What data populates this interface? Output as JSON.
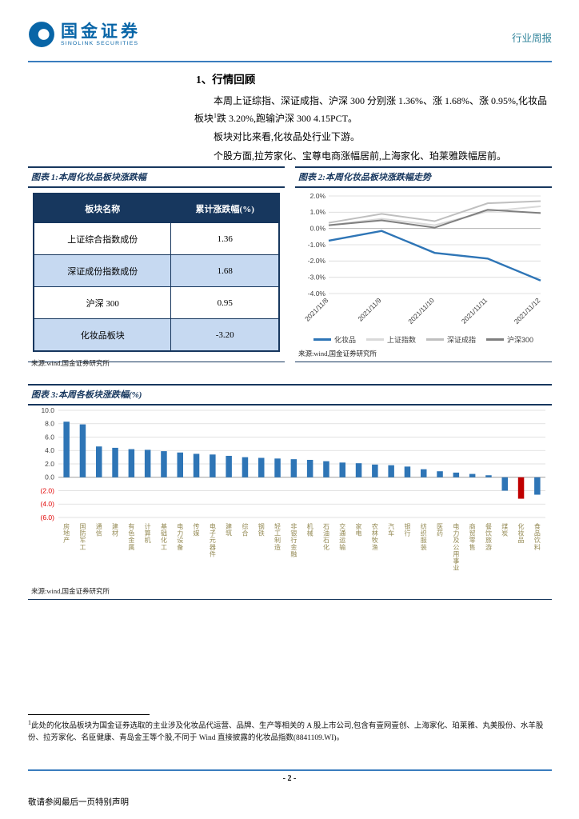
{
  "header": {
    "brand_cn": "国金证券",
    "brand_en": "SINOLINK SECURITIES",
    "report_type": "行业周报"
  },
  "content": {
    "section_title": "1、行情回顾",
    "p1_a": "本周上证综指、深证成指、沪深 300 分别涨 1.36%、涨 1.68%、涨 0.95%,化妆品板块",
    "p1_sup": "1",
    "p1_b": "跌 3.20%,跑输沪深 300 4.15PCT。",
    "p2": "板块对比来看,化妆品处行业下游。",
    "p3": "个股方面,拉芳家化、宝尊电商涨幅居前,上海家化、珀莱雅跌幅居前。"
  },
  "figure1": {
    "caption": "图表 1:本周化妆品板块涨跌幅",
    "table": {
      "headers": [
        "板块名称",
        "累计涨跌幅(%)"
      ],
      "rows": [
        [
          "上证综合指数成份",
          "1.36"
        ],
        [
          "深证成份指数成份",
          "1.68"
        ],
        [
          "沪深 300",
          "0.95"
        ],
        [
          "化妆品板块",
          "-3.20"
        ]
      ]
    },
    "source": "来源:wind,国金证券研究所"
  },
  "figure2": {
    "caption": "图表 2:本周化妆品板块涨跌幅走势",
    "source": "来源:wind,国金证券研究所"
  },
  "figure3": {
    "caption": "图表 3:本周各板块涨跌幅(%)",
    "source": "来源:wind,国金证券研究所"
  },
  "chart_data": [
    {
      "id": "cosmetics-week-trend",
      "type": "line",
      "title": "本周化妆品板块涨跌幅走势",
      "x": [
        "2021/11/8",
        "2021/11/9",
        "2021/11/10",
        "2021/11/11",
        "2021/11/12"
      ],
      "ylim": [
        -4.0,
        2.0
      ],
      "ytick_step": 1.0,
      "ytick_suffix": "%",
      "grid": true,
      "legend_position": "bottom",
      "series": [
        {
          "name": "化妆品",
          "color": "#2E75B6",
          "width": 2.4,
          "values": [
            -0.75,
            -0.15,
            -1.5,
            -1.85,
            -3.2
          ]
        },
        {
          "name": "上证指数",
          "color": "#D9D9D9",
          "width": 2,
          "values": [
            0.2,
            0.6,
            0.2,
            1.05,
            1.36
          ]
        },
        {
          "name": "深证成指",
          "color": "#BFBFBF",
          "width": 2,
          "values": [
            0.35,
            0.9,
            0.45,
            1.55,
            1.68
          ]
        },
        {
          "name": "沪深300",
          "color": "#7F7F7F",
          "width": 2,
          "values": [
            0.2,
            0.5,
            0.05,
            1.15,
            0.95
          ]
        }
      ]
    },
    {
      "id": "sector-weekly-change",
      "type": "bar",
      "title": "本周各板块涨跌幅(%)",
      "ylim": [
        -6.0,
        10.0
      ],
      "ytick_step": 2.0,
      "grid": true,
      "bar_color": "#2E75B6",
      "highlight_category": "化妆品",
      "highlight_color": "#C00000",
      "categories": [
        "房地产",
        "国防军工",
        "通信",
        "建材",
        "有色金属",
        "计算机",
        "基础化工",
        "电力设备",
        "传媒",
        "电子元器件",
        "建筑",
        "综合",
        "钢铁",
        "轻工制造",
        "非银行金融",
        "机械",
        "石油石化",
        "交通运输",
        "家电",
        "农林牧渔",
        "汽车",
        "银行",
        "纺织服装",
        "医药",
        "电力及公用事业",
        "商贸零售",
        "餐饮旅游",
        "煤炭",
        "化妆品",
        "食品饮料"
      ],
      "values": [
        8.3,
        7.9,
        4.6,
        4.4,
        4.2,
        4.1,
        3.9,
        3.7,
        3.5,
        3.4,
        3.2,
        3.0,
        2.9,
        2.8,
        2.7,
        2.6,
        2.4,
        2.2,
        2.1,
        1.9,
        1.8,
        1.6,
        1.2,
        0.9,
        0.7,
        0.5,
        0.3,
        -2.0,
        -3.2,
        -2.6
      ]
    }
  ],
  "footnote": {
    "marker": "1",
    "text": "此处的化妆品板块为国金证券选取的主业涉及化妆品代运营、品牌、生产等相关的 A 股上市公司,包含有壹网壹创、上海家化、珀莱雅、丸美股份、水羊股份、拉芳家化、名臣健康、青岛金王等个股,不同于 Wind 直接披露的化妆品指数(8841109.WI)。"
  },
  "footer": {
    "page_number": "- 2 -",
    "disclaimer": "敬请参阅最后一页特别声明"
  },
  "colors": {
    "navy": "#17375E",
    "accent_blue": "#2E75B6",
    "highlight_red": "#C00000",
    "row_alt": "#C6D9F1"
  }
}
